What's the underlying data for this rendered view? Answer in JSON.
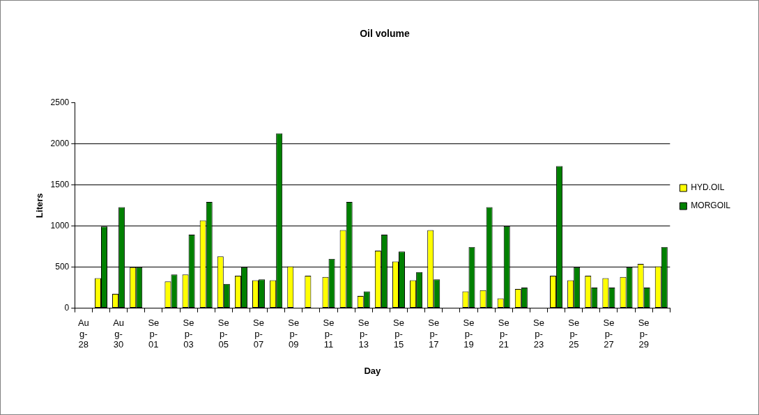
{
  "chart_data": {
    "type": "bar",
    "title": "Oil volume",
    "xlabel": "Day",
    "ylabel": "Liters",
    "categories": [
      "Aug-28",
      null,
      "Aug-30",
      null,
      "Sep-01",
      null,
      "Sep-03",
      null,
      "Sep-05",
      null,
      "Sep-07",
      null,
      "Sep-09",
      null,
      "Sep-11",
      null,
      "Sep-13",
      null,
      "Sep-15",
      null,
      "Sep-17",
      null,
      "Sep-19",
      null,
      "Sep-21",
      null,
      "Sep-23",
      null,
      "Sep-25",
      null,
      "Sep-27",
      null,
      "Sep-29",
      null
    ],
    "series": [
      {
        "name": "HYD.OIL",
        "color": "#ffff00",
        "values": [
          null,
          365,
          175,
          500,
          null,
          325,
          410,
          1070,
          630,
          395,
          340,
          340,
          510,
          395,
          380,
          950,
          150,
          700,
          570,
          340,
          950,
          null,
          205,
          220,
          120,
          235,
          null,
          395,
          340,
          395,
          365,
          380,
          540,
          510
        ]
      },
      {
        "name": "MORGOIL",
        "color": "#008000",
        "values": [
          null,
          995,
          1230,
          500,
          null,
          410,
          895,
          1295,
          295,
          500,
          350,
          2130,
          null,
          null,
          600,
          1295,
          205,
          895,
          690,
          440,
          350,
          null,
          745,
          1230,
          1000,
          250,
          null,
          1730,
          500,
          250,
          250,
          500,
          250,
          745
        ]
      }
    ],
    "ylim": [
      0,
      2500
    ],
    "yticks": [
      0,
      500,
      1000,
      1500,
      2000,
      2500
    ],
    "grid": "y",
    "legend": "right"
  }
}
